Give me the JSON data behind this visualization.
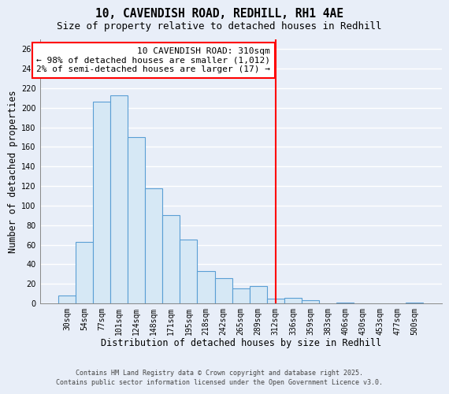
{
  "title": "10, CAVENDISH ROAD, REDHILL, RH1 4AE",
  "subtitle": "Size of property relative to detached houses in Redhill",
  "xlabel": "Distribution of detached houses by size in Redhill",
  "ylabel": "Number of detached properties",
  "bar_labels": [
    "30sqm",
    "54sqm",
    "77sqm",
    "101sqm",
    "124sqm",
    "148sqm",
    "171sqm",
    "195sqm",
    "218sqm",
    "242sqm",
    "265sqm",
    "289sqm",
    "312sqm",
    "336sqm",
    "359sqm",
    "383sqm",
    "406sqm",
    "430sqm",
    "453sqm",
    "477sqm",
    "500sqm"
  ],
  "bar_values": [
    8,
    63,
    206,
    213,
    170,
    118,
    90,
    65,
    33,
    26,
    15,
    18,
    5,
    6,
    3,
    0,
    1,
    0,
    0,
    0,
    1
  ],
  "bar_color": "#d6e8f5",
  "bar_edge_color": "#5a9fd4",
  "marker_line_x_label": "312sqm",
  "marker_line_color": "red",
  "annotation_title": "10 CAVENDISH ROAD: 310sqm",
  "annotation_line1": "← 98% of detached houses are smaller (1,012)",
  "annotation_line2": "2% of semi-detached houses are larger (17) →",
  "annotation_box_color": "white",
  "annotation_box_edge_color": "red",
  "ylim": [
    0,
    270
  ],
  "yticks": [
    0,
    20,
    40,
    60,
    80,
    100,
    120,
    140,
    160,
    180,
    200,
    220,
    240,
    260
  ],
  "background_color": "#e8eef8",
  "grid_color": "#ffffff",
  "footer1": "Contains HM Land Registry data © Crown copyright and database right 2025.",
  "footer2": "Contains public sector information licensed under the Open Government Licence v3.0.",
  "title_fontsize": 10.5,
  "subtitle_fontsize": 9,
  "axis_label_fontsize": 8.5,
  "tick_fontsize": 7,
  "annotation_fontsize": 8,
  "footer_fontsize": 6
}
